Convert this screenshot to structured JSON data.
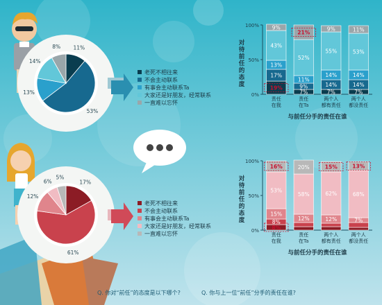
{
  "colors": {
    "bg_top": "#2fb4c9",
    "bg_bottom": "#bfe3ec",
    "male_palette": [
      "#0a3d4f",
      "#17698f",
      "#2aa0cc",
      "#62c7d9",
      "#9aa6aa"
    ],
    "female_palette": [
      "#8c1c25",
      "#c9424d",
      "#e0858c",
      "#f1bcc3",
      "#b8b8b8"
    ],
    "highlight_text": "#c8102e"
  },
  "legend_labels": [
    "老死不相往来",
    "不会主动联系",
    "有事会主动联系Ta",
    "大家还是好朋友，经常联系",
    "一直难以忘怀"
  ],
  "questions": {
    "q1": "Q. 你对“前任”的态度是以下哪个?",
    "q2": "Q. 你与上一位“前任”分手的责任在谁?"
  },
  "chart_data": [
    {
      "type": "pie",
      "categories": [
        "老死不相往来",
        "不会主动联系",
        "有事会主动联系Ta",
        "大家还是好朋友，经常联系",
        "一直难以忘怀"
      ],
      "values": [
        11,
        53,
        13,
        14,
        8
      ],
      "labels": [
        "11%",
        "53%",
        "13%",
        "14%",
        "8%"
      ]
    },
    {
      "type": "bar",
      "stacked": true,
      "categories": [
        "责任\n在我",
        "责任\n在Ta",
        "两个人\n都有责任",
        "两个人\n都没责任"
      ],
      "series": [
        {
          "values": [
            19,
            7,
            7,
            7
          ]
        },
        {
          "values": [
            17,
            9,
            14,
            14
          ]
        },
        {
          "values": [
            13,
            11,
            14,
            14
          ]
        },
        {
          "values": [
            43,
            52,
            55,
            53
          ]
        },
        {
          "values": [
            9,
            21,
            9,
            11
          ]
        }
      ],
      "labels": [
        [
          "19%",
          "7%",
          "7%",
          "7%"
        ],
        [
          "17%",
          "9%",
          "14%",
          "14%"
        ],
        [
          "13%",
          "11%",
          "14%",
          "14%"
        ],
        [
          "43%",
          "52%",
          "55%",
          "53%"
        ],
        [
          "9%",
          "21%",
          "9%",
          "11%"
        ]
      ],
      "highlight": [
        [
          0,
          0
        ],
        [
          4,
          1
        ]
      ],
      "xlabel": "与前任分手的责任在谁",
      "ylabel": "对待前任的态度",
      "yticks": [
        "0%",
        "50%",
        "100%"
      ],
      "ylim": [
        0,
        100
      ]
    },
    {
      "type": "pie",
      "categories": [
        "老死不相往来",
        "不会主动联系",
        "有事会主动联系Ta",
        "大家还是好朋友，经常联系",
        "一直难以忘怀"
      ],
      "values": [
        17,
        61,
        12,
        6,
        5
      ],
      "labels": [
        "17%",
        "61%",
        "12%",
        "6%",
        "5%"
      ]
    },
    {
      "type": "bar",
      "stacked": true,
      "categories": [
        "责任\n在我",
        "责任\n在Ta",
        "两个人\n都有责任",
        "两个人\n都没责任"
      ],
      "series": [
        {
          "values": [
            8,
            5,
            5,
            4
          ]
        },
        {
          "values": [
            8,
            6,
            5,
            7
          ]
        },
        {
          "values": [
            15,
            12,
            12,
            7
          ]
        },
        {
          "values": [
            53,
            58,
            62,
            68
          ]
        },
        {
          "values": [
            16,
            20,
            15,
            13
          ]
        }
      ],
      "labels": [
        [
          "8%",
          "",
          "",
          ""
        ],
        [
          "8%",
          "",
          "",
          ""
        ],
        [
          "15%",
          "12%",
          "12%",
          "7%"
        ],
        [
          "53%",
          "58%",
          "62%",
          "68%"
        ],
        [
          "16%",
          "20%",
          "15%",
          "13%"
        ]
      ],
      "highlight": [
        [
          0,
          0
        ],
        [
          4,
          0
        ],
        [
          4,
          2
        ],
        [
          4,
          3
        ]
      ],
      "xlabel": "与前任分手的责任在谁",
      "ylabel": "对待前任的态度",
      "yticks": [
        "0%",
        "50%",
        "100%"
      ],
      "ylim": [
        0,
        100
      ]
    }
  ]
}
